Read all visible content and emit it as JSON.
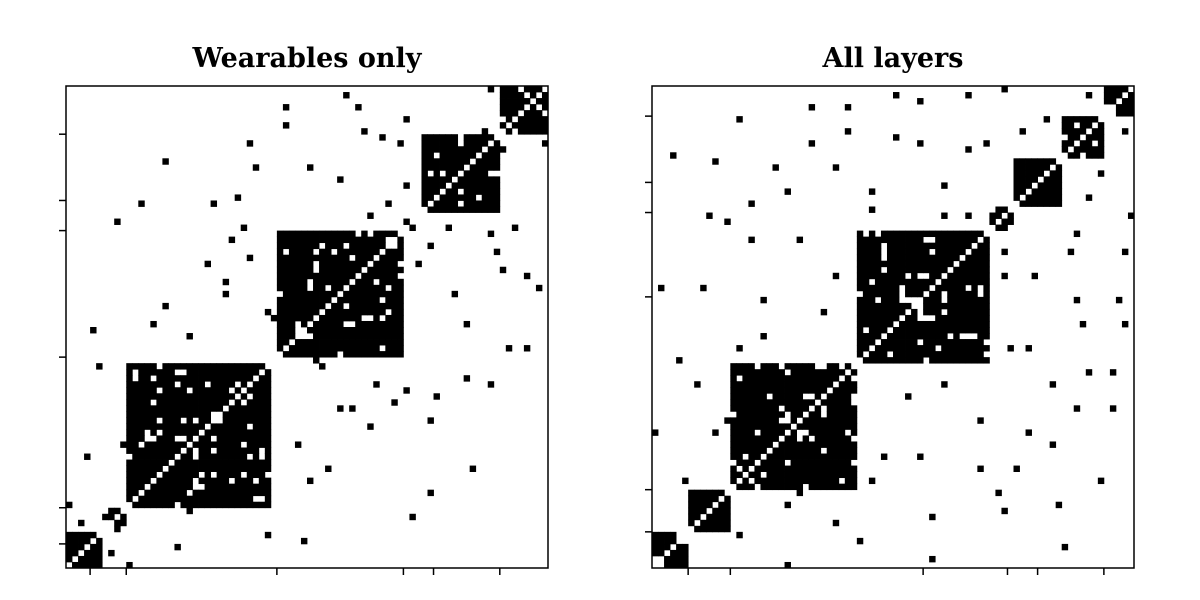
{
  "chart_data": [
    {
      "type": "heatmap",
      "title": "Wearables only",
      "n": 80,
      "ink": "#000000",
      "background": "#ffffff",
      "tick_positions": [
        4,
        10,
        35,
        56,
        61,
        72
      ],
      "communities": [
        [
          0,
          6
        ],
        [
          7,
          10
        ],
        [
          10,
          34
        ],
        [
          35,
          56
        ],
        [
          56,
          58
        ],
        [
          59,
          72
        ],
        [
          72,
          80
        ]
      ],
      "scattered_points": [
        [
          0,
          10
        ],
        [
          3,
          18
        ],
        [
          5,
          33
        ],
        [
          7,
          2
        ],
        [
          8,
          6
        ],
        [
          9,
          20
        ],
        [
          14,
          40
        ],
        [
          17,
          33
        ],
        [
          18,
          22
        ],
        [
          20,
          38
        ],
        [
          23,
          50
        ],
        [
          24,
          60
        ],
        [
          26,
          45
        ],
        [
          27,
          54
        ],
        [
          29,
          56
        ],
        [
          31,
          66
        ],
        [
          33,
          42
        ],
        [
          35,
          42
        ],
        [
          36,
          76
        ],
        [
          37,
          48
        ],
        [
          39,
          4
        ],
        [
          41,
          34
        ],
        [
          43,
          16
        ],
        [
          45,
          64
        ],
        [
          47,
          26
        ],
        [
          49,
          72
        ],
        [
          51,
          30
        ],
        [
          53,
          60
        ],
        [
          54,
          46
        ],
        [
          55,
          70
        ],
        [
          57,
          8
        ],
        [
          58,
          50
        ],
        [
          60,
          12
        ],
        [
          61,
          28
        ],
        [
          63,
          56
        ],
        [
          65,
          64
        ],
        [
          66,
          40
        ],
        [
          67,
          16
        ],
        [
          69,
          72
        ],
        [
          70,
          30
        ],
        [
          71,
          52
        ],
        [
          73,
          36
        ],
        [
          74,
          56
        ],
        [
          76,
          48
        ],
        [
          78,
          46
        ],
        [
          79,
          70
        ]
      ]
    },
    {
      "type": "heatmap",
      "title": "All layers",
      "n": 80,
      "ink": "#000000",
      "background": "#ffffff",
      "tick_positions": [
        6,
        13,
        45,
        59,
        64,
        75
      ],
      "communities": [
        [
          0,
          6
        ],
        [
          6,
          13
        ],
        [
          13,
          34
        ],
        [
          34,
          56
        ],
        [
          56,
          60
        ],
        [
          60,
          68
        ],
        [
          68,
          75
        ],
        [
          75,
          80
        ]
      ],
      "scattered_points": [
        [
          0,
          22
        ],
        [
          1,
          46
        ],
        [
          3,
          68
        ],
        [
          5,
          14
        ],
        [
          7,
          30
        ],
        [
          9,
          58
        ],
        [
          12,
          24
        ],
        [
          14,
          36
        ],
        [
          16,
          60
        ],
        [
          18,
          44
        ],
        [
          20,
          66
        ],
        [
          22,
          10
        ],
        [
          24,
          54
        ],
        [
          26,
          76
        ],
        [
          28,
          32
        ],
        [
          30,
          48
        ],
        [
          32,
          72
        ],
        [
          34,
          4
        ],
        [
          36,
          62
        ],
        [
          38,
          18
        ],
        [
          40,
          78
        ],
        [
          42,
          28
        ],
        [
          44,
          70
        ],
        [
          46,
          8
        ],
        [
          48,
          58
        ],
        [
          50,
          38
        ],
        [
          52,
          78
        ],
        [
          54,
          16
        ],
        [
          55,
          70
        ],
        [
          57,
          12
        ],
        [
          58,
          52
        ],
        [
          59,
          36
        ],
        [
          61,
          72
        ],
        [
          62,
          22
        ],
        [
          63,
          48
        ],
        [
          65,
          74
        ],
        [
          66,
          30
        ],
        [
          67,
          10
        ],
        [
          69,
          52
        ],
        [
          70,
          26
        ],
        [
          71,
          40
        ],
        [
          72,
          78
        ],
        [
          74,
          14
        ],
        [
          76,
          32
        ],
        [
          77,
          44
        ],
        [
          79,
          58
        ]
      ]
    }
  ]
}
